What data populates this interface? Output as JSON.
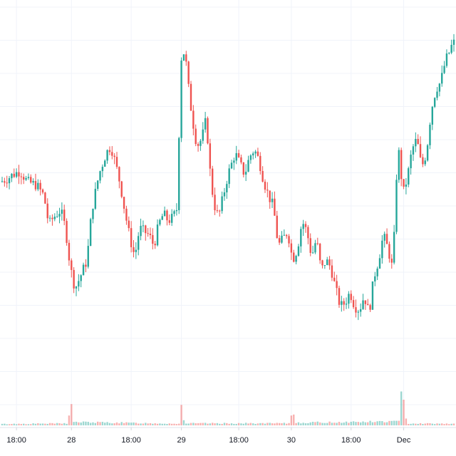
{
  "chart_data": {
    "type": "candlestick",
    "title": "",
    "xlabel": "",
    "ylabel": "",
    "grid": true,
    "colors": {
      "up": "#26a69a",
      "down": "#ef5350",
      "grid": "#f0f3fa",
      "axis": "#d1d4dc",
      "text": "#131722"
    },
    "x_ticks": [
      {
        "label": "18:00",
        "t": 6
      },
      {
        "label": "28",
        "t": 29
      },
      {
        "label": "18:00",
        "t": 54
      },
      {
        "label": "29",
        "t": 75
      },
      {
        "label": "18:00",
        "t": 99
      },
      {
        "label": "30",
        "t": 121
      },
      {
        "label": "18:00",
        "t": 146
      },
      {
        "label": "Dec",
        "t": 168
      }
    ],
    "x_range": [
      0,
      189
    ],
    "y_range": [
      0,
      100
    ],
    "volume_range": [
      0,
      100
    ],
    "anchors": [
      [
        0,
        56
      ],
      [
        3,
        57
      ],
      [
        5,
        58
      ],
      [
        8,
        59
      ],
      [
        11,
        56
      ],
      [
        15,
        55
      ],
      [
        18,
        52
      ],
      [
        20,
        44
      ],
      [
        22,
        46
      ],
      [
        25,
        48
      ],
      [
        27,
        43
      ],
      [
        29,
        32
      ],
      [
        31,
        26
      ],
      [
        33,
        29
      ],
      [
        36,
        34
      ],
      [
        38,
        48
      ],
      [
        41,
        58
      ],
      [
        44,
        64
      ],
      [
        46,
        66
      ],
      [
        48,
        61
      ],
      [
        50,
        55
      ],
      [
        52,
        47
      ],
      [
        54,
        40
      ],
      [
        56,
        35
      ],
      [
        58,
        43
      ],
      [
        62,
        41
      ],
      [
        64,
        38
      ],
      [
        66,
        44
      ],
      [
        68,
        47
      ],
      [
        70,
        45
      ],
      [
        72,
        46
      ],
      [
        74,
        49
      ],
      [
        75,
        90
      ],
      [
        77,
        93
      ],
      [
        78,
        85
      ],
      [
        80,
        74
      ],
      [
        82,
        66
      ],
      [
        84,
        68
      ],
      [
        86,
        74
      ],
      [
        87,
        62
      ],
      [
        89,
        50
      ],
      [
        91,
        46
      ],
      [
        93,
        52
      ],
      [
        95,
        58
      ],
      [
        98,
        64
      ],
      [
        100,
        61
      ],
      [
        102,
        58
      ],
      [
        104,
        63
      ],
      [
        106,
        65
      ],
      [
        108,
        62
      ],
      [
        110,
        56
      ],
      [
        112,
        52
      ],
      [
        114,
        49
      ],
      [
        116,
        38
      ],
      [
        118,
        40
      ],
      [
        120,
        42
      ],
      [
        122,
        34
      ],
      [
        124,
        37
      ],
      [
        126,
        45
      ],
      [
        128,
        42
      ],
      [
        130,
        35
      ],
      [
        132,
        40
      ],
      [
        134,
        31
      ],
      [
        136,
        34
      ],
      [
        138,
        32
      ],
      [
        140,
        26
      ],
      [
        142,
        21
      ],
      [
        144,
        22
      ],
      [
        146,
        25
      ],
      [
        148,
        21
      ],
      [
        150,
        20
      ],
      [
        152,
        24
      ],
      [
        154,
        19
      ],
      [
        156,
        29
      ],
      [
        158,
        34
      ],
      [
        160,
        41
      ],
      [
        162,
        37
      ],
      [
        164,
        31
      ],
      [
        165,
        50
      ],
      [
        166,
        65
      ],
      [
        167,
        63
      ],
      [
        168,
        52
      ],
      [
        170,
        57
      ],
      [
        172,
        65
      ],
      [
        174,
        68
      ],
      [
        176,
        60
      ],
      [
        178,
        64
      ],
      [
        180,
        76
      ],
      [
        182,
        82
      ],
      [
        184,
        84
      ],
      [
        186,
        90
      ],
      [
        188,
        93
      ],
      [
        189,
        95
      ]
    ],
    "volume_anchors": [
      [
        0,
        4
      ],
      [
        27,
        6
      ],
      [
        28,
        35
      ],
      [
        29,
        55
      ],
      [
        30,
        10
      ],
      [
        74,
        5
      ],
      [
        75,
        55
      ],
      [
        76,
        20
      ],
      [
        77,
        6
      ],
      [
        120,
        6
      ],
      [
        121,
        30
      ],
      [
        122,
        40
      ],
      [
        123,
        8
      ],
      [
        166,
        12
      ],
      [
        167,
        80
      ],
      [
        168,
        100
      ],
      [
        169,
        20
      ],
      [
        170,
        6
      ],
      [
        189,
        5
      ]
    ]
  }
}
